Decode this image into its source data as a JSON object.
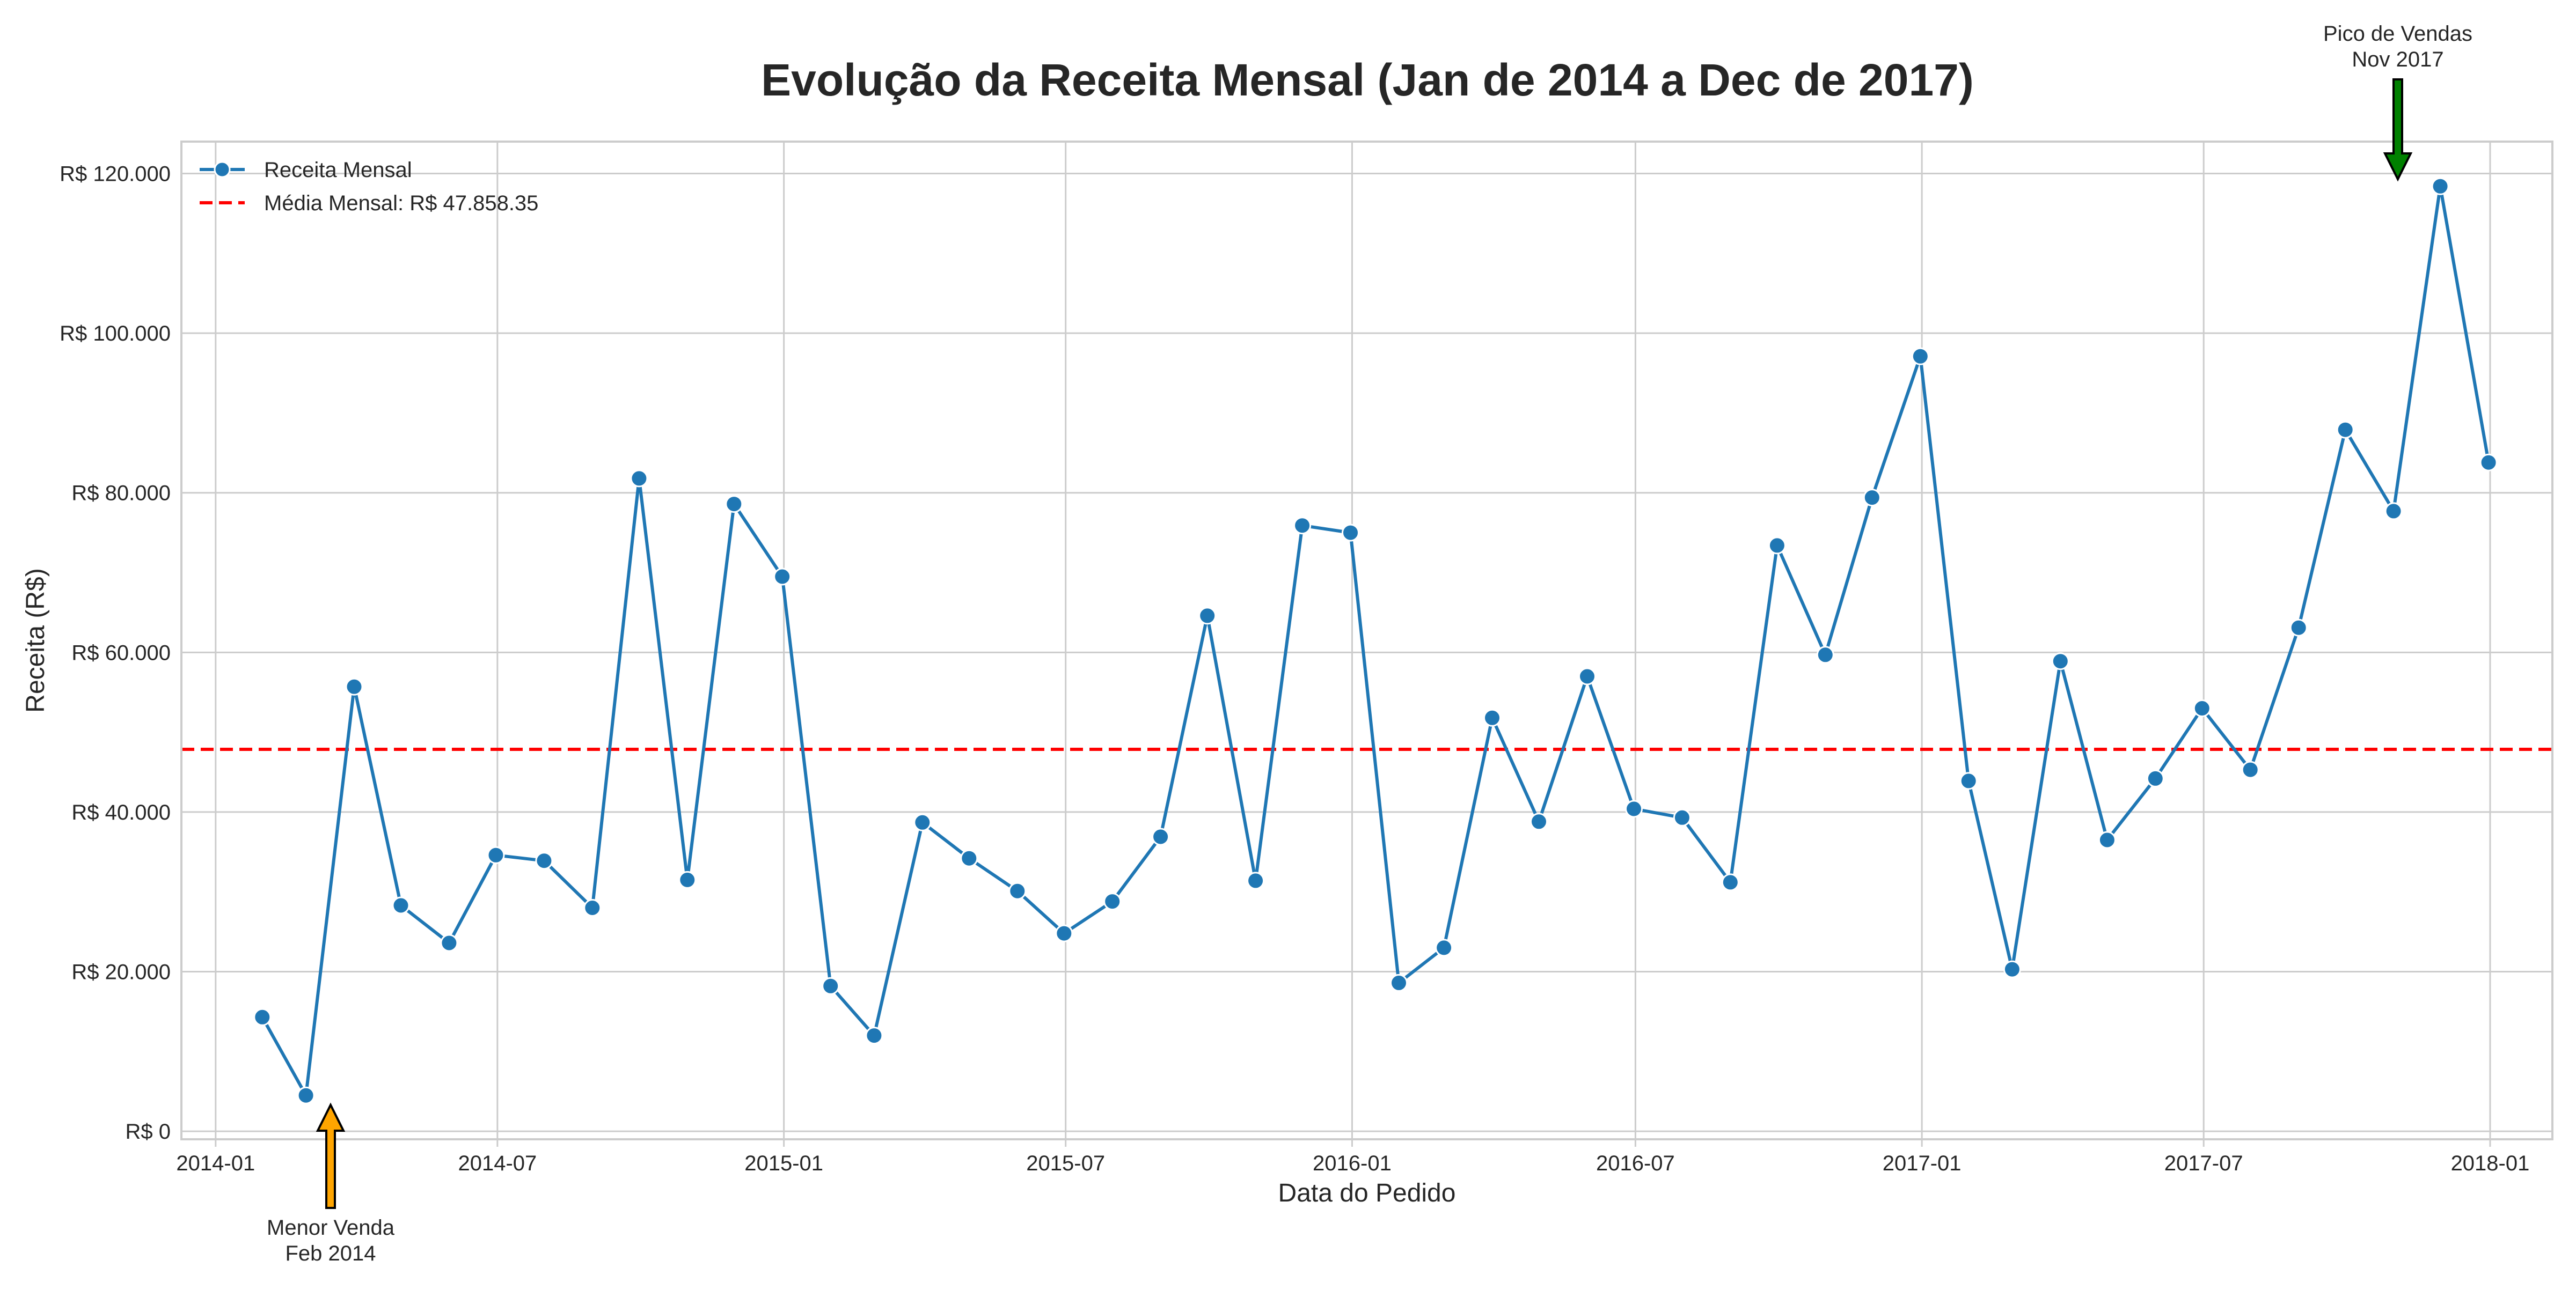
{
  "chart_data": {
    "type": "line",
    "title": "Evolução da Receita Mensal (Jan de 2014 a Dec de 2017)",
    "xlabel": "Data do Pedido",
    "ylabel": "Receita (R$)",
    "xlim": [
      "2013-12-10",
      "2018-02-10"
    ],
    "ylim": [
      -1000,
      124000
    ],
    "x_ticks": [
      "2014-01",
      "2014-07",
      "2015-01",
      "2015-07",
      "2016-01",
      "2016-07",
      "2017-01",
      "2017-07",
      "2018-01"
    ],
    "y_ticks": [
      0,
      20000,
      40000,
      60000,
      80000,
      100000,
      120000
    ],
    "y_tick_labels": [
      "R$ 0",
      "R$ 20.000",
      "R$ 40.000",
      "R$ 60.000",
      "R$ 80.000",
      "R$ 100.000",
      "R$ 120.000"
    ],
    "grid": true,
    "legend_position": "top-left",
    "series": [
      {
        "name": "Receita Mensal",
        "color": "#1f77b4",
        "marker": "circle",
        "x": [
          "2014-01-31",
          "2014-02-28",
          "2014-03-31",
          "2014-04-30",
          "2014-05-31",
          "2014-06-30",
          "2014-07-31",
          "2014-08-31",
          "2014-09-30",
          "2014-10-31",
          "2014-11-30",
          "2014-12-31",
          "2015-01-31",
          "2015-02-28",
          "2015-03-31",
          "2015-04-30",
          "2015-05-31",
          "2015-06-30",
          "2015-07-31",
          "2015-08-31",
          "2015-09-30",
          "2015-10-31",
          "2015-11-30",
          "2015-12-31",
          "2016-01-31",
          "2016-02-29",
          "2016-03-31",
          "2016-04-30",
          "2016-05-31",
          "2016-06-30",
          "2016-07-31",
          "2016-08-31",
          "2016-09-30",
          "2016-10-31",
          "2016-11-30",
          "2016-12-31",
          "2017-01-31",
          "2017-02-28",
          "2017-03-31",
          "2017-04-30",
          "2017-05-31",
          "2017-06-30",
          "2017-07-31",
          "2017-08-31",
          "2017-09-30",
          "2017-10-31",
          "2017-11-30",
          "2017-12-31"
        ],
        "values": [
          14300,
          4500,
          55700,
          28300,
          23600,
          34600,
          33900,
          28000,
          81800,
          31500,
          78600,
          69500,
          18200,
          12000,
          38700,
          34200,
          30100,
          24800,
          28800,
          36900,
          64600,
          31400,
          75900,
          75000,
          18600,
          23000,
          51800,
          38800,
          57000,
          40400,
          39300,
          31200,
          73400,
          59700,
          79400,
          97100,
          43900,
          20300,
          58900,
          36500,
          44200,
          53000,
          45300,
          63100,
          87900,
          77700,
          118400,
          83800
        ]
      },
      {
        "name": "Média Mensal: R$ 47.858.35",
        "color": "#ff0000",
        "style": "dashed",
        "value": 47858.35
      }
    ],
    "annotations": [
      {
        "line1": "Pico de Vendas",
        "line2": "Nov 2017",
        "x": "2017-11-30",
        "y": 118400,
        "arrow_color": "#008000",
        "direction": "down"
      },
      {
        "line1": "Menor Venda",
        "line2": "Feb 2014",
        "x": "2014-02-28",
        "y": 4500,
        "arrow_color": "#ffa500",
        "direction": "up"
      }
    ]
  }
}
